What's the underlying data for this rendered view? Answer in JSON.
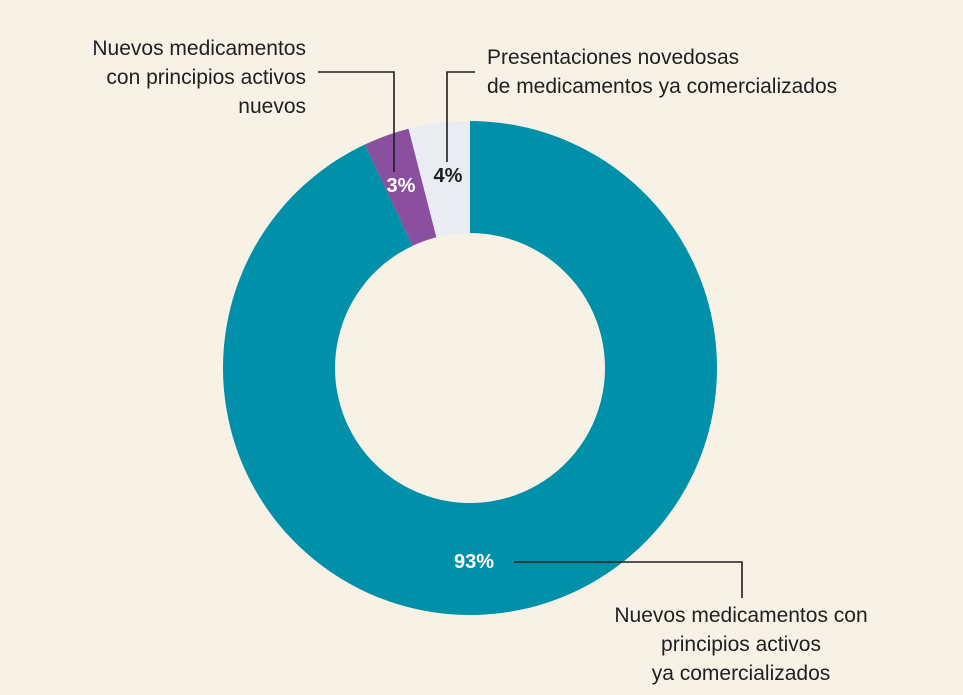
{
  "chart_data": {
    "type": "pie",
    "donut": true,
    "slices": [
      {
        "name": "Nuevos medicamentos con principios activos ya comercializados",
        "label_lines": [
          "Nuevos medicamentos con",
          "principios activos",
          "ya comercializados"
        ],
        "value": 93,
        "value_label": "93%",
        "color": "#0090a9",
        "value_label_color": "#ffffff"
      },
      {
        "name": "Nuevos medicamentos con principios activos nuevos",
        "label_lines": [
          "Nuevos medicamentos",
          "con principios activos",
          "nuevos"
        ],
        "value": 3,
        "value_label": "3%",
        "color": "#8a4f9e",
        "value_label_color": "#ffffff"
      },
      {
        "name": "Presentaciones novedosas de medicamentos ya comercializados",
        "label_lines": [
          "Presentaciones novedosas",
          "de medicamentos ya comercializados"
        ],
        "value": 4,
        "value_label": "4%",
        "color": "#e9edf1",
        "value_label_color": "#1f1f1f"
      }
    ],
    "background": "#f8f1e6",
    "leader_line_color": "#1f1f1f"
  }
}
